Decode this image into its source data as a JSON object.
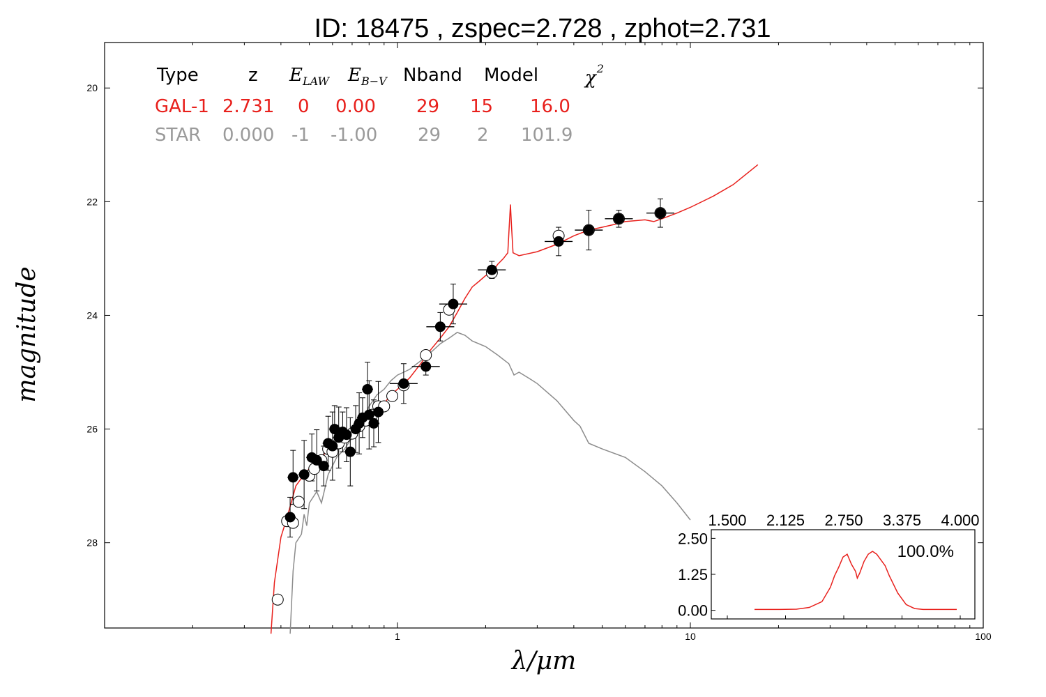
{
  "chart_data": {
    "type": "scatter",
    "title": "ID:  18475 , zspec=2.728 , zphot=2.731",
    "xlabel": "λ/μm",
    "ylabel": "magnitude",
    "xscale": "log",
    "xlim": [
      0.1,
      100
    ],
    "ylim": [
      29.5,
      19.2
    ],
    "x_ticks": [
      {
        "value": 1,
        "label": "1"
      },
      {
        "value": 10,
        "label": "10"
      },
      {
        "value": 100,
        "label": "100"
      }
    ],
    "y_ticks": [
      {
        "value": 20,
        "label": "20"
      },
      {
        "value": 22,
        "label": "22"
      },
      {
        "value": 24,
        "label": "24"
      },
      {
        "value": 26,
        "label": "26"
      },
      {
        "value": 28,
        "label": "28"
      }
    ],
    "colors": {
      "gal": "#e8201c",
      "star": "#8c8c8c",
      "star_text": "#9a9a9a"
    },
    "table": {
      "headers": {
        "type": "Type",
        "z": "z",
        "elaw_main": "E",
        "elaw_sub": "LAW",
        "ebv_main": "E",
        "ebv_sub": "B−V",
        "nband": "Nband",
        "model": "Model",
        "chi_main": "χ",
        "chi_sup": "2"
      },
      "rows": [
        {
          "type": "GAL-1",
          "z": "2.731",
          "elaw": "0",
          "ebv": "0.00",
          "nband": "29",
          "model": "15",
          "chi2": "16.0"
        },
        {
          "type": "STAR",
          "z": "0.000",
          "elaw": "-1",
          "ebv": "-1.00",
          "nband": "29",
          "model": "2",
          "chi2": "101.9"
        }
      ]
    },
    "series": [
      {
        "kind": "line",
        "color_key": "gal",
        "points": [
          [
            0.37,
            29.6
          ],
          [
            0.38,
            28.7
          ],
          [
            0.4,
            27.9
          ],
          [
            0.42,
            27.55
          ],
          [
            0.45,
            27.0
          ],
          [
            0.48,
            26.8
          ],
          [
            0.52,
            26.6
          ],
          [
            0.56,
            26.45
          ],
          [
            0.6,
            26.3
          ],
          [
            0.65,
            26.2
          ],
          [
            0.7,
            26.1
          ],
          [
            0.75,
            25.95
          ],
          [
            0.8,
            25.8
          ],
          [
            0.85,
            25.7
          ],
          [
            0.9,
            25.55
          ],
          [
            0.95,
            25.4
          ],
          [
            1.0,
            25.3
          ],
          [
            1.05,
            25.2
          ],
          [
            1.1,
            25.1
          ],
          [
            1.2,
            24.85
          ],
          [
            1.3,
            24.6
          ],
          [
            1.4,
            24.4
          ],
          [
            1.5,
            24.2
          ],
          [
            1.6,
            23.95
          ],
          [
            1.7,
            23.7
          ],
          [
            1.8,
            23.5
          ],
          [
            1.9,
            23.4
          ],
          [
            2.0,
            23.3
          ],
          [
            2.1,
            23.25
          ],
          [
            2.2,
            23.1
          ],
          [
            2.3,
            23.0
          ],
          [
            2.38,
            22.9
          ],
          [
            2.41,
            22.4
          ],
          [
            2.43,
            22.05
          ],
          [
            2.45,
            22.4
          ],
          [
            2.48,
            22.9
          ],
          [
            2.6,
            22.95
          ],
          [
            3.0,
            22.88
          ],
          [
            3.5,
            22.75
          ],
          [
            4.0,
            22.6
          ],
          [
            4.5,
            22.5
          ],
          [
            5.0,
            22.45
          ],
          [
            5.5,
            22.4
          ],
          [
            6.0,
            22.35
          ],
          [
            7.0,
            22.32
          ],
          [
            7.5,
            22.35
          ],
          [
            8.0,
            22.3
          ],
          [
            9.0,
            22.2
          ],
          [
            10,
            22.1
          ],
          [
            12,
            21.9
          ],
          [
            14,
            21.7
          ],
          [
            17,
            21.35
          ]
        ]
      },
      {
        "kind": "line",
        "color_key": "star",
        "points": [
          [
            0.43,
            29.6
          ],
          [
            0.44,
            28.5
          ],
          [
            0.45,
            28.0
          ],
          [
            0.47,
            27.85
          ],
          [
            0.48,
            27.5
          ],
          [
            0.49,
            27.7
          ],
          [
            0.5,
            27.3
          ],
          [
            0.53,
            27.1
          ],
          [
            0.55,
            27.3
          ],
          [
            0.58,
            26.8
          ],
          [
            0.62,
            26.5
          ],
          [
            0.66,
            26.35
          ],
          [
            0.7,
            26.15
          ],
          [
            0.75,
            25.9
          ],
          [
            0.8,
            25.6
          ],
          [
            0.85,
            25.4
          ],
          [
            0.9,
            25.3
          ],
          [
            0.95,
            25.15
          ],
          [
            1.0,
            25.05
          ],
          [
            1.05,
            25.0
          ],
          [
            1.1,
            24.95
          ],
          [
            1.2,
            24.8
          ],
          [
            1.3,
            24.65
          ],
          [
            1.4,
            24.5
          ],
          [
            1.5,
            24.4
          ],
          [
            1.6,
            24.3
          ],
          [
            1.7,
            24.35
          ],
          [
            1.8,
            24.45
          ],
          [
            2.0,
            24.55
          ],
          [
            2.2,
            24.7
          ],
          [
            2.4,
            24.85
          ],
          [
            2.5,
            25.05
          ],
          [
            2.6,
            25.0
          ],
          [
            2.8,
            25.1
          ],
          [
            3.0,
            25.2
          ],
          [
            3.5,
            25.5
          ],
          [
            4.0,
            25.85
          ],
          [
            4.2,
            25.95
          ],
          [
            4.5,
            26.25
          ],
          [
            5.0,
            26.35
          ],
          [
            6.0,
            26.5
          ],
          [
            7.0,
            26.75
          ],
          [
            8.0,
            27.0
          ],
          [
            9.0,
            27.3
          ],
          [
            10.0,
            27.6
          ]
        ]
      },
      {
        "kind": "points",
        "name": "model_open",
        "points": [
          [
            0.39,
            29.0
          ],
          [
            0.42,
            27.62
          ],
          [
            0.44,
            27.65
          ],
          [
            0.46,
            27.28
          ],
          [
            0.5,
            26.82
          ],
          [
            0.52,
            26.7
          ],
          [
            0.55,
            26.55
          ],
          [
            0.58,
            26.35
          ],
          [
            0.6,
            26.4
          ],
          [
            0.63,
            26.25
          ],
          [
            0.66,
            26.15
          ],
          [
            0.7,
            26.08
          ],
          [
            0.74,
            25.95
          ],
          [
            0.78,
            25.85
          ],
          [
            0.82,
            25.75
          ],
          [
            0.86,
            25.6
          ],
          [
            0.9,
            25.6
          ],
          [
            0.96,
            25.42
          ],
          [
            1.05,
            25.23
          ],
          [
            1.25,
            24.7
          ],
          [
            1.5,
            23.9
          ],
          [
            2.1,
            23.25
          ],
          [
            3.55,
            22.6
          ],
          [
            4.5,
            22.5
          ],
          [
            5.7,
            22.3
          ],
          [
            7.9,
            22.2
          ]
        ]
      },
      {
        "kind": "points",
        "name": "observed",
        "points": [
          [
            0.43,
            27.55
          ],
          [
            0.44,
            26.85
          ],
          [
            0.48,
            26.8
          ],
          [
            0.51,
            26.5
          ],
          [
            0.53,
            26.55
          ],
          [
            0.56,
            26.65
          ],
          [
            0.58,
            26.25
          ],
          [
            0.6,
            26.3
          ],
          [
            0.61,
            26.0
          ],
          [
            0.63,
            26.15
          ],
          [
            0.65,
            26.05
          ],
          [
            0.67,
            26.1
          ],
          [
            0.69,
            26.4
          ],
          [
            0.72,
            26.0
          ],
          [
            0.74,
            25.9
          ],
          [
            0.76,
            25.8
          ],
          [
            0.79,
            25.3
          ],
          [
            0.8,
            25.75
          ],
          [
            0.83,
            25.9
          ],
          [
            0.86,
            25.7
          ],
          [
            1.05,
            25.2
          ],
          [
            1.25,
            24.9
          ],
          [
            1.4,
            24.2
          ],
          [
            1.55,
            23.8
          ],
          [
            2.1,
            23.2
          ],
          [
            3.55,
            22.7
          ],
          [
            4.5,
            22.5
          ],
          [
            5.7,
            22.3
          ],
          [
            7.9,
            22.2
          ]
        ]
      }
    ],
    "inset": {
      "type": "line",
      "x_ticks": [
        "1.500",
        "2.125",
        "2.750",
        "3.375",
        "4.000"
      ],
      "y_ticks": [
        "2.50",
        "1.25",
        "0.00"
      ],
      "xlim": [
        1.5,
        4.0
      ],
      "ylim": [
        -0.3,
        2.8
      ],
      "label": "100.0%",
      "points": [
        [
          1.5,
          0.03
        ],
        [
          1.8,
          0.03
        ],
        [
          2.0,
          0.04
        ],
        [
          2.15,
          0.1
        ],
        [
          2.3,
          0.3
        ],
        [
          2.4,
          0.8
        ],
        [
          2.45,
          1.2
        ],
        [
          2.5,
          1.5
        ],
        [
          2.55,
          1.85
        ],
        [
          2.6,
          1.95
        ],
        [
          2.65,
          1.6
        ],
        [
          2.7,
          1.35
        ],
        [
          2.72,
          1.12
        ],
        [
          2.75,
          1.3
        ],
        [
          2.8,
          1.7
        ],
        [
          2.85,
          1.95
        ],
        [
          2.9,
          2.05
        ],
        [
          2.95,
          1.95
        ],
        [
          3.0,
          1.75
        ],
        [
          3.05,
          1.55
        ],
        [
          3.1,
          1.2
        ],
        [
          3.2,
          0.6
        ],
        [
          3.3,
          0.2
        ],
        [
          3.4,
          0.06
        ],
        [
          3.5,
          0.03
        ],
        [
          3.7,
          0.03
        ],
        [
          3.9,
          0.03
        ]
      ]
    }
  }
}
